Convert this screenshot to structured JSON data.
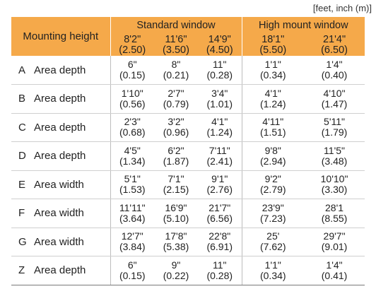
{
  "units_note": "[feet, inch (m)]",
  "header": {
    "mounting_label": "Mounting height",
    "standard_label": "Standard window",
    "high_label": "High mount window",
    "columns": [
      {
        "ft": "8'2\"",
        "m": "(2.50)"
      },
      {
        "ft": "11'6\"",
        "m": "(3.50)"
      },
      {
        "ft": "14'9\"",
        "m": "(4.50)"
      },
      {
        "ft": "18'1\"",
        "m": "(5.50)"
      },
      {
        "ft": "21'4\"",
        "m": "(6.50)"
      }
    ]
  },
  "rows": [
    {
      "letter": "A",
      "label": "Area depth",
      "cells": [
        {
          "ft": "6\"",
          "m": "(0.15)"
        },
        {
          "ft": "8\"",
          "m": "(0.21)"
        },
        {
          "ft": "11\"",
          "m": "(0.28)"
        },
        {
          "ft": "1'1\"",
          "m": "(0.34)"
        },
        {
          "ft": "1'4\"",
          "m": "(0.40)"
        }
      ]
    },
    {
      "letter": "B",
      "label": "Area depth",
      "cells": [
        {
          "ft": "1'10\"",
          "m": "(0.56)"
        },
        {
          "ft": "2'7\"",
          "m": "(0.79)"
        },
        {
          "ft": "3'4\"",
          "m": "(1.01)"
        },
        {
          "ft": "4'1\"",
          "m": "(1.24)"
        },
        {
          "ft": "4'10\"",
          "m": "(1.47)"
        }
      ]
    },
    {
      "letter": "C",
      "label": "Area depth",
      "cells": [
        {
          "ft": "2'3\"",
          "m": "(0.68)"
        },
        {
          "ft": "3'2\"",
          "m": "(0.96)"
        },
        {
          "ft": "4'1\"",
          "m": "(1.24)"
        },
        {
          "ft": "4'11\"",
          "m": "(1.51)"
        },
        {
          "ft": "5'11\"",
          "m": "(1.79)"
        }
      ]
    },
    {
      "letter": "D",
      "label": "Area depth",
      "cells": [
        {
          "ft": "4'5\"",
          "m": "(1.34)"
        },
        {
          "ft": "6'2\"",
          "m": "(1.87)"
        },
        {
          "ft": "7'11\"",
          "m": "(2.41)"
        },
        {
          "ft": "9'8\"",
          "m": "(2.94)"
        },
        {
          "ft": "11'5\"",
          "m": "(3.48)"
        }
      ]
    },
    {
      "letter": "E",
      "label": "Area width",
      "cells": [
        {
          "ft": "5'1\"",
          "m": "(1.53)"
        },
        {
          "ft": "7'1\"",
          "m": "(2.15)"
        },
        {
          "ft": "9'1\"",
          "m": "(2.76)"
        },
        {
          "ft": "9'2\"",
          "m": "(2.79)"
        },
        {
          "ft": "10'10\"",
          "m": "(3.30)"
        }
      ]
    },
    {
      "letter": "F",
      "label": "Area width",
      "cells": [
        {
          "ft": "11'11\"",
          "m": "(3.64)"
        },
        {
          "ft": "16'9\"",
          "m": "(5.10)"
        },
        {
          "ft": "21'7\"",
          "m": "(6.56)"
        },
        {
          "ft": "23'9\"",
          "m": "(7.23)"
        },
        {
          "ft": "28'1",
          "m": "(8.55)"
        }
      ]
    },
    {
      "letter": "G",
      "label": "Area width",
      "cells": [
        {
          "ft": "12'7\"",
          "m": "(3.84)"
        },
        {
          "ft": "17'8\"",
          "m": "(5.38)"
        },
        {
          "ft": "22'8\"",
          "m": "(6.91)"
        },
        {
          "ft": "25'",
          "m": "(7.62)"
        },
        {
          "ft": "29'7\"",
          "m": "(9.01)"
        }
      ]
    },
    {
      "letter": "Z",
      "label": "Area depth",
      "cells": [
        {
          "ft": "6\"",
          "m": "(0.15)"
        },
        {
          "ft": "9\"",
          "m": "(0.22)"
        },
        {
          "ft": "11\"",
          "m": "(0.28)"
        },
        {
          "ft": "1'1\"",
          "m": "(0.34)"
        },
        {
          "ft": "1'4\"",
          "m": "(0.41)"
        }
      ]
    }
  ]
}
